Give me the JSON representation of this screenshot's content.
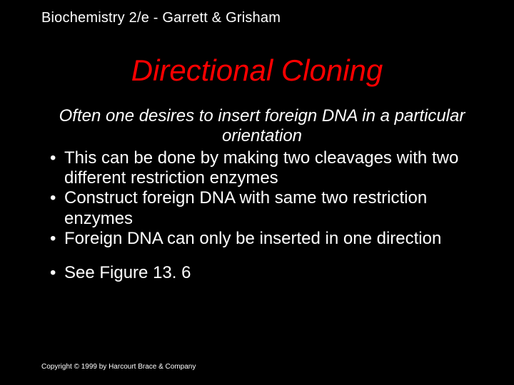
{
  "colors": {
    "background": "#000000",
    "title": "#ff0000",
    "text": "#ffffff"
  },
  "typography": {
    "header_fontsize": 20,
    "title_fontsize": 42,
    "body_fontsize": 24,
    "copyright_fontsize": 10,
    "title_italic": true,
    "intro_italic": true
  },
  "header": "Biochemistry 2/e - Garrett & Grisham",
  "title": "Directional Cloning",
  "intro": "Often one desires to insert foreign DNA in a particular orientation",
  "bullets": [
    "This can be done by making two cleavages with two different restriction enzymes",
    "Construct foreign DNA with same two restriction enzymes",
    "Foreign DNA can only be inserted in one direction"
  ],
  "bullets2": [
    "See Figure 13. 6"
  ],
  "copyright": "Copyright © 1999 by Harcourt Brace & Company"
}
